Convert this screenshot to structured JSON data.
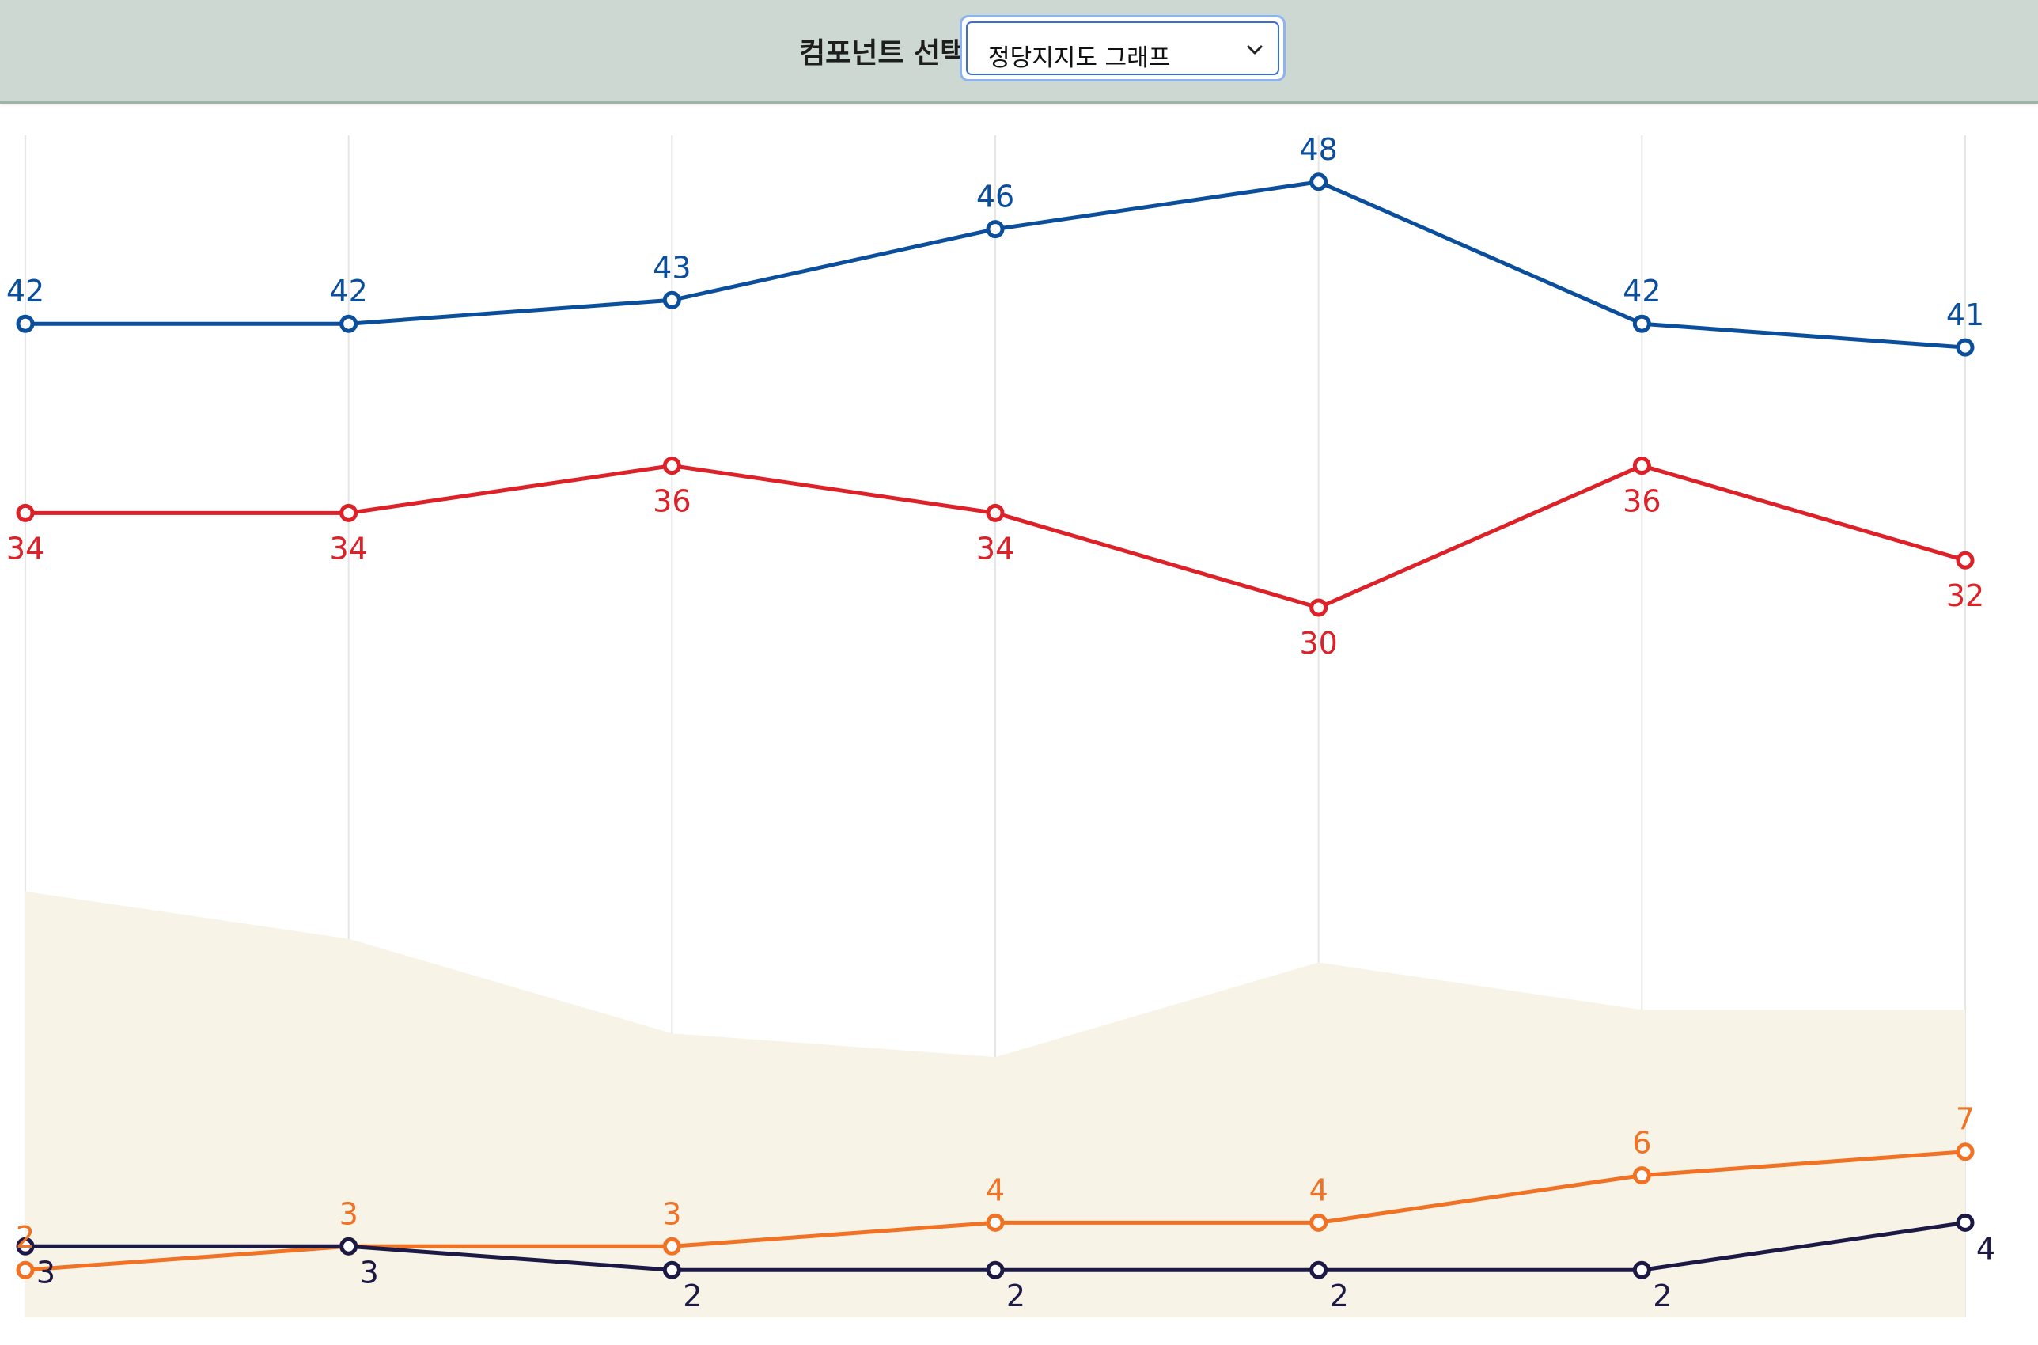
{
  "header": {
    "label": "컴포넌트 선택:",
    "select": {
      "value": "정당지지도 그래프",
      "icon": "chevron-down-icon"
    }
  },
  "chart_data": {
    "type": "line",
    "title": "",
    "xlabel": "",
    "ylabel": "",
    "ylim": [
      0,
      53
    ],
    "grid": "vertical",
    "points_count": 7,
    "series": [
      {
        "color": "#0b4f9c",
        "label_position": "above",
        "values": [
          42,
          42,
          43,
          46,
          48,
          42,
          41
        ]
      },
      {
        "color": "#dc2128",
        "label_position": "below",
        "values": [
          34,
          34,
          36,
          34,
          30,
          36,
          32
        ]
      },
      {
        "color": "#f07224",
        "label_position": "above",
        "values": [
          2,
          3,
          3,
          4,
          4,
          6,
          7
        ]
      },
      {
        "color": "#1c1a44",
        "label_position": "below-right",
        "values": [
          3,
          3,
          2,
          2,
          2,
          2,
          4
        ]
      }
    ],
    "background_area": {
      "color": "#f7f3e7",
      "values": [
        18,
        16,
        12,
        11,
        15,
        13,
        13
      ]
    }
  }
}
